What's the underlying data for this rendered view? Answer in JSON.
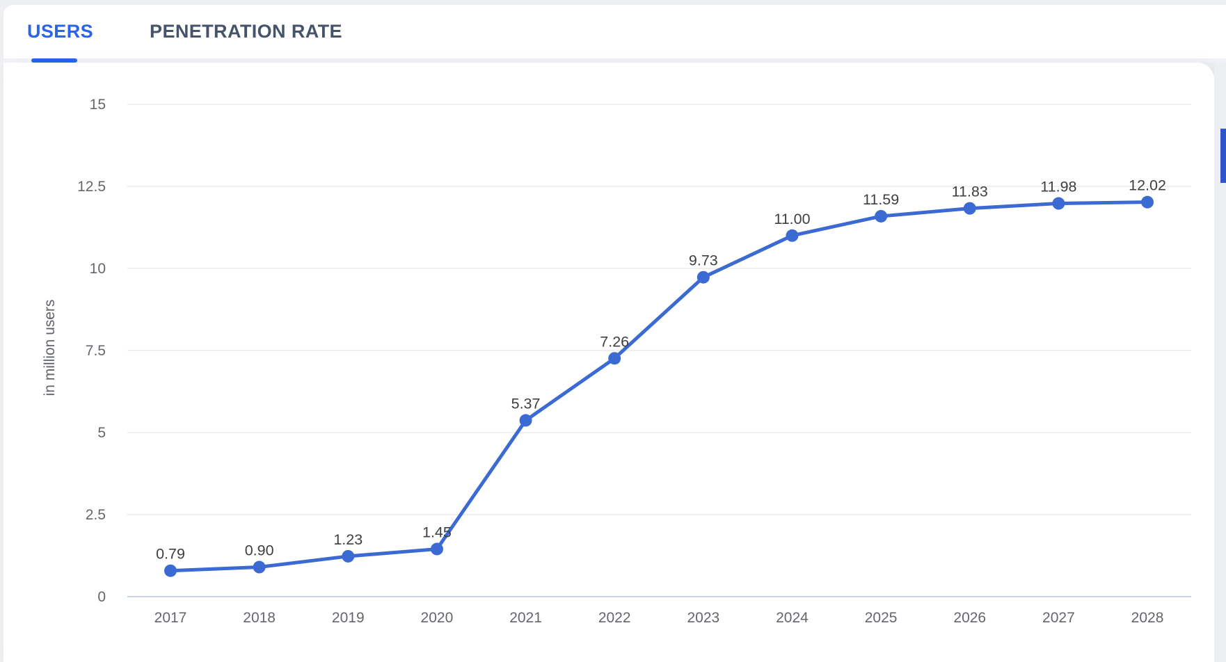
{
  "tabs": {
    "users": {
      "label": "USERS",
      "active": true
    },
    "penetration": {
      "label": "PENETRATION RATE",
      "active": false
    }
  },
  "colors": {
    "accent": "#2462e9",
    "tab_active": "#2d63e8",
    "tab_inactive": "#45536b",
    "line": "#3b6ad3",
    "dot": "#3b6ad3",
    "grid": "#e9eaec",
    "axis_zero_line": "#c9d3ee",
    "tick_label": "#63676c",
    "value_label": "#3c4043",
    "axis_title": "#5f6368",
    "page_bg": "#edeff2",
    "card_bg": "#ffffff",
    "scroll_thumb": "#2f55cb"
  },
  "chart_data": {
    "type": "line",
    "title": "",
    "xlabel": "",
    "ylabel": "in million users",
    "categories": [
      "2017",
      "2018",
      "2019",
      "2020",
      "2021",
      "2022",
      "2023",
      "2024",
      "2025",
      "2026",
      "2027",
      "2028"
    ],
    "values": [
      0.79,
      0.9,
      1.23,
      1.45,
      5.37,
      7.26,
      9.73,
      11.0,
      11.59,
      11.83,
      11.98,
      12.02
    ],
    "point_labels": [
      "0.79",
      "0.90",
      "1.23",
      "1.45",
      "5.37",
      "7.26",
      "9.73",
      "11.00",
      "11.59",
      "11.83",
      "11.98",
      "12.02"
    ],
    "yticks": [
      0,
      2.5,
      5,
      7.5,
      10,
      12.5,
      15
    ],
    "ytick_labels": [
      "0",
      "2.5",
      "5",
      "7.5",
      "10",
      "12.5",
      "15"
    ],
    "ylim": [
      0,
      15
    ],
    "grid": true,
    "legend_position": "none",
    "series_name": "Users"
  }
}
